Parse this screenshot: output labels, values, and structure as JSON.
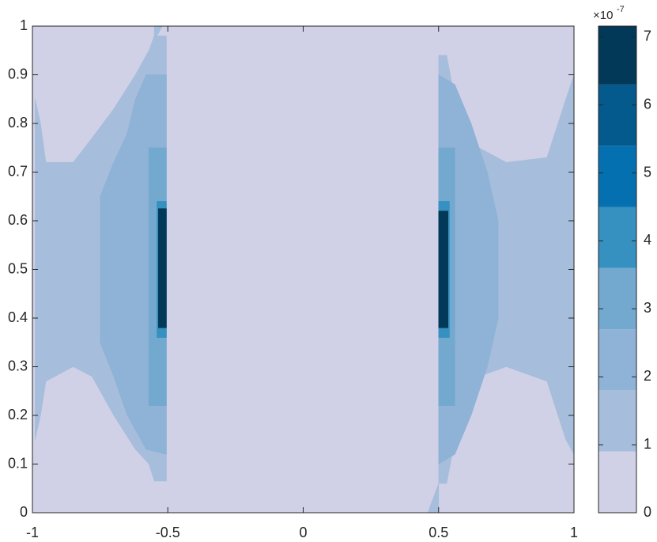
{
  "chart_data": {
    "type": "contourf",
    "xlim": [
      -1,
      1
    ],
    "xticks": [
      -1,
      -0.5,
      0,
      0.5,
      1
    ],
    "ylim": [
      0,
      1
    ],
    "yticks": [
      0,
      0.1,
      0.2,
      0.3,
      0.4,
      0.5,
      0.6,
      0.7,
      0.8,
      0.9,
      1
    ],
    "levels": [
      0,
      0.9,
      1.8,
      2.7,
      3.6,
      4.5,
      5.4,
      6.3
    ],
    "colors": [
      "#d0d1e6",
      "#a6bddb",
      "#8fb2d7",
      "#74a9cf",
      "#3690c0",
      "#0570b0",
      "#045a8d",
      "#023858"
    ],
    "clim": [
      0,
      7.16
    ],
    "cticks": [
      0,
      1,
      2,
      3,
      4,
      5,
      6,
      7
    ],
    "colorbar_base": "×10",
    "colorbar_exponent": "-7",
    "regions": [
      {
        "level": 0,
        "points": [
          [
            -1,
            0
          ],
          [
            1,
            0
          ],
          [
            1,
            1
          ],
          [
            -1,
            1
          ]
        ]
      },
      {
        "level": 0.9,
        "points": [
          [
            -0.99,
            0.15
          ],
          [
            -0.97,
            0.2
          ],
          [
            -0.95,
            0.27
          ],
          [
            -0.85,
            0.3
          ],
          [
            -0.78,
            0.28
          ],
          [
            -0.7,
            0.2
          ],
          [
            -0.62,
            0.13
          ],
          [
            -0.57,
            0.1
          ],
          [
            -0.55,
            0.065
          ],
          [
            -0.505,
            0.065
          ],
          [
            -0.505,
            0.98
          ],
          [
            -0.55,
            0.98
          ],
          [
            -0.57,
            0.95
          ],
          [
            -0.62,
            0.9
          ],
          [
            -0.7,
            0.83
          ],
          [
            -0.78,
            0.77
          ],
          [
            -0.85,
            0.72
          ],
          [
            -0.95,
            0.72
          ],
          [
            -0.97,
            0.8
          ],
          [
            -0.99,
            0.85
          ]
        ]
      },
      {
        "level": 0.9,
        "points": [
          [
            -0.55,
            1
          ],
          [
            -0.52,
            1
          ],
          [
            -0.55,
            0.97
          ]
        ]
      },
      {
        "level": 0.9,
        "points": [
          [
            0.5,
            0.06
          ],
          [
            0.53,
            0.06
          ],
          [
            0.55,
            0.12
          ],
          [
            0.6,
            0.2
          ],
          [
            0.65,
            0.28
          ],
          [
            0.75,
            0.3
          ],
          [
            0.9,
            0.27
          ],
          [
            0.97,
            0.15
          ],
          [
            1,
            0.12
          ],
          [
            1,
            0.9
          ],
          [
            0.97,
            0.85
          ],
          [
            0.9,
            0.73
          ],
          [
            0.75,
            0.72
          ],
          [
            0.65,
            0.75
          ],
          [
            0.6,
            0.82
          ],
          [
            0.55,
            0.88
          ],
          [
            0.53,
            0.94
          ],
          [
            0.5,
            0.94
          ]
        ]
      },
      {
        "level": 0.9,
        "points": [
          [
            0.46,
            0
          ],
          [
            0.5,
            0
          ],
          [
            0.5,
            0.06
          ]
        ]
      },
      {
        "level": 1.8,
        "points": [
          [
            -0.75,
            0.35
          ],
          [
            -0.75,
            0.65
          ],
          [
            -0.7,
            0.72
          ],
          [
            -0.65,
            0.78
          ],
          [
            -0.62,
            0.85
          ],
          [
            -0.58,
            0.9
          ],
          [
            -0.505,
            0.9
          ],
          [
            -0.505,
            0.12
          ],
          [
            -0.58,
            0.13
          ],
          [
            -0.65,
            0.2
          ],
          [
            -0.7,
            0.28
          ]
        ]
      },
      {
        "level": 1.8,
        "points": [
          [
            0.5,
            0.1
          ],
          [
            0.5,
            0.9
          ],
          [
            0.56,
            0.88
          ],
          [
            0.62,
            0.8
          ],
          [
            0.68,
            0.7
          ],
          [
            0.72,
            0.6
          ],
          [
            0.72,
            0.4
          ],
          [
            0.68,
            0.3
          ],
          [
            0.62,
            0.2
          ],
          [
            0.56,
            0.12
          ]
        ]
      },
      {
        "level": 2.7,
        "points": [
          [
            -0.57,
            0.22
          ],
          [
            -0.505,
            0.22
          ],
          [
            -0.505,
            0.75
          ],
          [
            -0.57,
            0.75
          ]
        ]
      },
      {
        "level": 2.7,
        "points": [
          [
            0.5,
            0.22
          ],
          [
            0.56,
            0.22
          ],
          [
            0.56,
            0.75
          ],
          [
            0.5,
            0.75
          ]
        ]
      },
      {
        "level": 3.6,
        "points": [
          [
            -0.54,
            0.36
          ],
          [
            -0.505,
            0.36
          ],
          [
            -0.505,
            0.64
          ],
          [
            -0.54,
            0.64
          ]
        ]
      },
      {
        "level": 3.6,
        "points": [
          [
            0.5,
            0.36
          ],
          [
            0.54,
            0.36
          ],
          [
            0.54,
            0.64
          ],
          [
            0.5,
            0.64
          ]
        ]
      },
      {
        "level": 6.3,
        "points": [
          [
            -0.535,
            0.38
          ],
          [
            -0.505,
            0.38
          ],
          [
            -0.505,
            0.625
          ],
          [
            -0.535,
            0.625
          ]
        ]
      },
      {
        "level": 6.3,
        "points": [
          [
            0.5,
            0.38
          ],
          [
            0.535,
            0.38
          ],
          [
            0.535,
            0.62
          ],
          [
            0.5,
            0.62
          ]
        ]
      }
    ]
  }
}
